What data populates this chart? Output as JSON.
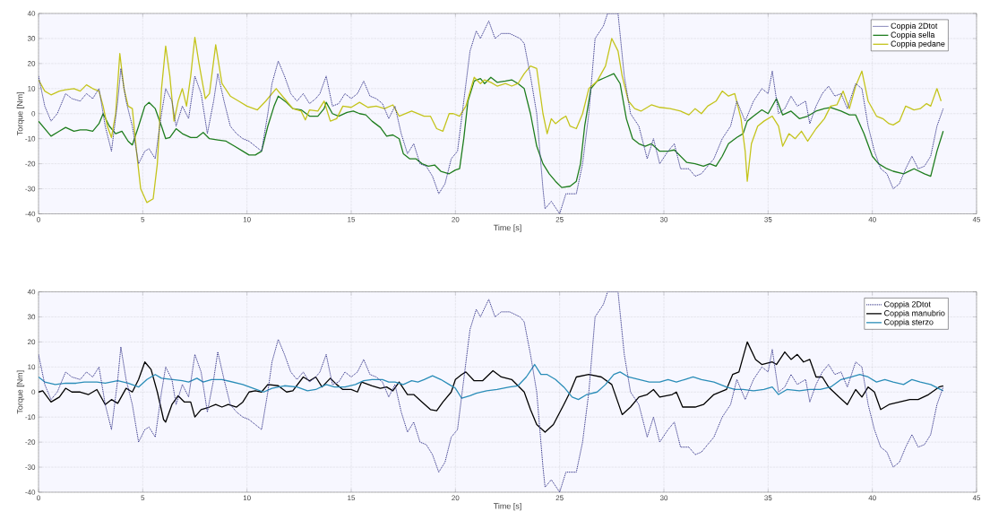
{
  "chart_data": [
    {
      "type": "line",
      "xlabel": "Time [s]",
      "ylabel": "Torque [Nm]",
      "xlim": [
        0,
        45
      ],
      "ylim": [
        -40,
        40
      ],
      "xticks": [
        0,
        5,
        10,
        15,
        20,
        25,
        30,
        35,
        40,
        45
      ],
      "yticks": [
        -40,
        -30,
        -20,
        -10,
        0,
        10,
        20,
        30,
        40
      ],
      "grid": true,
      "legend": "top right",
      "marker": "none",
      "series": [
        {
          "name": "Coppia 2Dtot",
          "color": "#3a3a8c",
          "line_style": "dotted",
          "x": [
            0,
            0.3,
            0.6,
            0.9,
            1.3,
            1.6,
            2.0,
            2.3,
            2.6,
            2.9,
            3.2,
            3.5,
            3.8,
            3.95,
            4.2,
            4.5,
            4.8,
            5.1,
            5.3,
            5.6,
            5.9,
            6.1,
            6.4,
            6.6,
            6.9,
            7.2,
            7.5,
            7.8,
            8.1,
            8.4,
            8.6,
            8.9,
            9.2,
            9.5,
            9.8,
            10.1,
            10.4,
            10.7,
            11.0,
            11.2,
            11.5,
            11.8,
            12.1,
            12.4,
            12.7,
            13.0,
            13.3,
            13.5,
            13.8,
            14.1,
            14.4,
            14.7,
            15.0,
            15.3,
            15.6,
            15.9,
            16.2,
            16.5,
            16.8,
            17.1,
            17.4,
            17.7,
            18.0,
            18.3,
            18.6,
            18.9,
            19.2,
            19.5,
            19.8,
            20.1,
            20.4,
            20.7,
            21.0,
            21.2,
            21.6,
            21.9,
            22.2,
            22.6,
            23.1,
            23.3,
            23.6,
            23.9,
            24.2,
            24.3,
            24.6,
            25.0,
            25.3,
            25.8,
            26.1,
            26.4,
            26.7,
            27.1,
            27.3,
            27.8,
            28.1,
            28.4,
            28.8,
            29.2,
            29.5,
            29.8,
            30.2,
            30.5,
            30.8,
            31.2,
            31.5,
            31.8,
            32.4,
            32.8,
            33.2,
            33.5,
            33.9,
            34.3,
            34.7,
            35.0,
            35.2,
            35.5,
            35.8,
            36.1,
            36.4,
            36.8,
            37.0,
            37.3,
            37.6,
            37.9,
            38.2,
            38.5,
            38.8,
            39.2,
            39.5,
            39.8,
            40.1,
            40.4,
            40.7,
            41.0,
            41.3,
            41.6,
            41.9,
            42.2,
            42.5,
            42.8,
            43.1,
            43.4
          ],
          "values": [
            15,
            3,
            -3,
            0,
            8,
            6,
            5,
            8,
            6,
            10,
            -5,
            -15,
            5,
            18,
            5,
            -5,
            -20,
            -15,
            -14,
            -18,
            0,
            10,
            5,
            -5,
            3,
            -2,
            15,
            8,
            -8,
            5,
            16,
            5,
            -5,
            -8,
            -10,
            -11,
            -13,
            -15,
            0,
            12,
            21,
            15,
            8,
            5,
            8,
            4,
            6,
            8,
            15,
            3,
            4,
            8,
            6,
            8,
            13,
            7,
            6,
            4,
            -2,
            3,
            -8,
            -16,
            -12,
            -20,
            -21,
            -25,
            -32,
            -28,
            -18,
            -15,
            5,
            25,
            33,
            30,
            37,
            30,
            32,
            32,
            30,
            28,
            15,
            0,
            -30,
            -38,
            -35,
            -40,
            -32,
            -32,
            -20,
            0,
            30,
            35,
            40,
            40,
            15,
            0,
            -5,
            -18,
            -10,
            -20,
            -15,
            -12,
            -22,
            -22,
            -25,
            -24,
            -18,
            -10,
            -5,
            5,
            -3,
            5,
            10,
            8,
            17,
            0,
            2,
            7,
            3,
            5,
            -4,
            3,
            8,
            11,
            7,
            8,
            2,
            12,
            10,
            -5,
            -15,
            -22,
            -24,
            -30,
            -28,
            -22,
            -17,
            -22,
            -21,
            -17,
            -5,
            2
          ]
        },
        {
          "name": "Coppia sella",
          "color": "#1e7d1e",
          "line_style": "solid",
          "x": [
            0,
            0.6,
            1.0,
            1.3,
            1.7,
            2.0,
            2.3,
            2.6,
            2.9,
            3.1,
            3.4,
            3.7,
            4.0,
            4.3,
            4.5,
            4.8,
            5.1,
            5.3,
            5.6,
            5.9,
            6.1,
            6.3,
            6.6,
            6.9,
            7.3,
            7.6,
            7.9,
            8.2,
            8.6,
            9.0,
            9.4,
            9.8,
            10.1,
            10.4,
            10.7,
            11.0,
            11.3,
            11.5,
            11.9,
            12.2,
            12.6,
            13.0,
            13.4,
            13.7,
            13.8,
            14.1,
            14.4,
            14.8,
            15.1,
            15.4,
            15.7,
            16.0,
            16.4,
            16.7,
            17.0,
            17.3,
            17.5,
            17.8,
            18.1,
            18.4,
            18.7,
            19.0,
            19.3,
            19.7,
            20.0,
            20.2,
            20.4,
            20.6,
            20.9,
            21.2,
            21.4,
            21.7,
            22.0,
            22.4,
            22.7,
            23.0,
            23.3,
            23.6,
            23.9,
            24.2,
            24.5,
            24.8,
            25.1,
            25.5,
            25.8,
            26.0,
            26.2,
            26.5,
            26.8,
            27.2,
            27.6,
            27.9,
            28.2,
            28.5,
            28.8,
            29.1,
            29.4,
            29.8,
            30.2,
            30.5,
            30.8,
            31.1,
            31.5,
            31.9,
            32.2,
            32.5,
            32.8,
            33.1,
            33.5,
            33.8,
            34.0,
            34.3,
            34.7,
            35.0,
            35.4,
            35.7,
            36.1,
            36.5,
            36.9,
            37.3,
            37.7,
            38.0,
            38.5,
            38.9,
            39.2,
            39.6,
            40.0,
            40.3,
            40.7,
            41.0,
            41.5,
            42.0,
            42.5,
            42.8,
            43.1,
            43.4
          ],
          "values": [
            -3,
            -9,
            -7,
            -5.5,
            -7,
            -6.5,
            -6.5,
            -7,
            -4,
            0,
            -5,
            -8,
            -7,
            -11,
            -12.5,
            -5,
            3,
            4.5,
            2,
            -5,
            -10,
            -9.5,
            -6,
            -8,
            -9.5,
            -9.5,
            -7.5,
            -10,
            -10.5,
            -11,
            -13,
            -15,
            -16.5,
            -16.5,
            -15,
            -5,
            3,
            7,
            4.5,
            2,
            1.5,
            -1,
            -1,
            2,
            4.5,
            0,
            -1,
            0.5,
            1,
            0,
            -0.5,
            -3,
            -5.5,
            -9,
            -8.5,
            -10,
            -16,
            -18,
            -18,
            -20,
            -21,
            -20.5,
            -23,
            -24,
            -22.5,
            -22,
            -10,
            5,
            13,
            14,
            12,
            14.5,
            12.5,
            13,
            13.5,
            12,
            10,
            0,
            -13,
            -20,
            -24,
            -27,
            -29.5,
            -29,
            -27,
            -20,
            -5,
            10,
            13,
            14.5,
            16,
            12,
            -2,
            -10,
            -12,
            -13,
            -12,
            -15,
            -15,
            -14.5,
            -17,
            -19.5,
            -20,
            -21,
            -20,
            -21,
            -17,
            -12,
            -9.5,
            -8,
            -3,
            -1,
            1.5,
            0,
            6,
            -0.5,
            1,
            -2,
            -1,
            1,
            2,
            2.5,
            1,
            -0.5,
            -0.5,
            -8,
            -17,
            -20,
            -22,
            -23,
            -24,
            -22,
            -24,
            -25,
            -15,
            -7
          ]
        },
        {
          "name": "Coppia pedane",
          "color": "#c4c41c",
          "line_style": "solid",
          "x": [
            0,
            0.3,
            0.6,
            1.0,
            1.3,
            1.7,
            2.0,
            2.3,
            2.6,
            2.9,
            3.1,
            3.3,
            3.5,
            3.7,
            3.9,
            4.1,
            4.3,
            4.5,
            4.7,
            4.9,
            5.2,
            5.5,
            5.7,
            5.9,
            6.1,
            6.3,
            6.5,
            6.7,
            6.9,
            7.1,
            7.3,
            7.5,
            7.7,
            8.0,
            8.2,
            8.5,
            8.8,
            9.2,
            9.6,
            10.0,
            10.5,
            10.9,
            11.4,
            11.8,
            12.2,
            12.6,
            12.8,
            13.0,
            13.4,
            13.7,
            14.0,
            14.3,
            14.6,
            15.0,
            15.4,
            15.8,
            16.2,
            16.6,
            17.0,
            17.3,
            17.9,
            18.5,
            18.8,
            19.1,
            19.4,
            19.7,
            19.9,
            20.2,
            20.5,
            20.9,
            21.2,
            21.4,
            21.7,
            22.0,
            22.4,
            22.7,
            23.0,
            23.3,
            23.6,
            23.9,
            24.2,
            24.4,
            24.6,
            24.8,
            25.1,
            25.3,
            25.5,
            25.8,
            26.1,
            26.4,
            26.8,
            27.2,
            27.5,
            27.8,
            28.0,
            28.3,
            28.6,
            28.9,
            29.4,
            29.8,
            30.3,
            30.8,
            31.2,
            31.5,
            31.8,
            32.1,
            32.5,
            32.8,
            33.1,
            33.4,
            33.7,
            33.9,
            34.0,
            34.2,
            34.5,
            34.8,
            35.2,
            35.5,
            35.7,
            36.0,
            36.3,
            36.6,
            36.9,
            37.3,
            37.7,
            38.0,
            38.3,
            38.6,
            38.9,
            39.2,
            39.5,
            39.8,
            40.2,
            40.5,
            40.8,
            41.0,
            41.3,
            41.6,
            42.0,
            42.3,
            42.6,
            42.8,
            43.1,
            43.3
          ],
          "values": [
            13.5,
            9,
            7.5,
            9,
            9.5,
            10,
            9,
            11.5,
            10,
            9,
            3,
            -5,
            -9.5,
            0,
            24,
            10,
            3,
            2,
            -15,
            -30,
            -35.5,
            -34,
            -20,
            10,
            27,
            15,
            -3,
            5,
            10,
            3,
            15,
            30.5,
            20,
            6,
            8,
            27.5,
            12,
            7,
            5,
            3,
            1.5,
            5,
            10,
            6,
            2,
            1,
            -2.5,
            1.5,
            1,
            5,
            -3,
            -2,
            3,
            2.5,
            4.5,
            2.5,
            3,
            2,
            3.5,
            -1,
            1,
            -1,
            -1,
            -6,
            -7,
            0,
            0,
            -1,
            3,
            14.5,
            12,
            13.5,
            12.5,
            11,
            12,
            11,
            12,
            16,
            19,
            18,
            0,
            -8,
            -2,
            -4,
            -2,
            -1,
            -5,
            -6,
            0,
            10,
            13,
            19,
            30,
            25,
            15,
            5,
            2,
            1,
            3.5,
            2.5,
            2,
            1,
            -0.5,
            2,
            0,
            3,
            5,
            9,
            7,
            8,
            -2,
            -15,
            -27,
            -12,
            -5,
            -3,
            -1,
            -5,
            -13,
            -8,
            -10,
            -7,
            -11,
            -6,
            -2,
            3,
            3.5,
            9,
            2,
            11,
            17,
            5,
            -1,
            -2,
            -4,
            -4.5,
            -3,
            3,
            1.5,
            2,
            4,
            3,
            10,
            5
          ]
        }
      ]
    },
    {
      "type": "line",
      "xlabel": "Time [s]",
      "ylabel": "Torque [Nm]",
      "xlim": [
        0,
        45
      ],
      "ylim": [
        -40,
        40
      ],
      "xticks": [
        0,
        5,
        10,
        15,
        20,
        25,
        30,
        35,
        40,
        45
      ],
      "yticks": [
        -40,
        -30,
        -20,
        -10,
        0,
        10,
        20,
        30,
        40
      ],
      "grid": true,
      "legend": "top right",
      "marker": "none",
      "series": [
        {
          "name": "Coppia 2Dtot",
          "color": "#3a3a8c",
          "line_style": "dotted",
          "x": [
            0,
            0.3,
            0.6,
            0.9,
            1.3,
            1.6,
            2.0,
            2.3,
            2.6,
            2.9,
            3.2,
            3.5,
            3.8,
            3.95,
            4.2,
            4.5,
            4.8,
            5.1,
            5.3,
            5.6,
            5.9,
            6.1,
            6.4,
            6.6,
            6.9,
            7.2,
            7.5,
            7.8,
            8.1,
            8.4,
            8.6,
            8.9,
            9.2,
            9.5,
            9.8,
            10.1,
            10.4,
            10.7,
            11.0,
            11.2,
            11.5,
            11.8,
            12.1,
            12.4,
            12.7,
            13.0,
            13.3,
            13.5,
            13.8,
            14.1,
            14.4,
            14.7,
            15.0,
            15.3,
            15.6,
            15.9,
            16.2,
            16.5,
            16.8,
            17.1,
            17.4,
            17.7,
            18.0,
            18.3,
            18.6,
            18.9,
            19.2,
            19.5,
            19.8,
            20.1,
            20.4,
            20.7,
            21.0,
            21.2,
            21.6,
            21.9,
            22.2,
            22.6,
            23.1,
            23.3,
            23.6,
            23.9,
            24.2,
            24.3,
            24.6,
            25.0,
            25.3,
            25.8,
            26.1,
            26.4,
            26.7,
            27.1,
            27.3,
            27.8,
            28.1,
            28.4,
            28.8,
            29.2,
            29.5,
            29.8,
            30.2,
            30.5,
            30.8,
            31.2,
            31.5,
            31.8,
            32.4,
            32.8,
            33.2,
            33.5,
            33.9,
            34.3,
            34.7,
            35.0,
            35.2,
            35.5,
            35.8,
            36.1,
            36.4,
            36.8,
            37.0,
            37.3,
            37.6,
            37.9,
            38.2,
            38.5,
            38.8,
            39.2,
            39.5,
            39.8,
            40.1,
            40.4,
            40.7,
            41.0,
            41.3,
            41.6,
            41.9,
            42.2,
            42.5,
            42.8,
            43.1,
            43.4
          ],
          "values": [
            15,
            3,
            -3,
            0,
            8,
            6,
            5,
            8,
            6,
            10,
            -5,
            -15,
            5,
            18,
            5,
            -5,
            -20,
            -15,
            -14,
            -18,
            0,
            10,
            5,
            -5,
            3,
            -2,
            15,
            8,
            -8,
            5,
            16,
            5,
            -5,
            -8,
            -10,
            -11,
            -13,
            -15,
            0,
            12,
            21,
            15,
            8,
            5,
            8,
            4,
            6,
            8,
            15,
            3,
            4,
            8,
            6,
            8,
            13,
            7,
            6,
            4,
            -2,
            3,
            -8,
            -16,
            -12,
            -20,
            -21,
            -25,
            -32,
            -28,
            -18,
            -15,
            5,
            25,
            33,
            30,
            37,
            30,
            32,
            32,
            30,
            28,
            15,
            0,
            -30,
            -38,
            -35,
            -40,
            -32,
            -32,
            -20,
            0,
            30,
            35,
            40,
            40,
            15,
            0,
            -5,
            -18,
            -10,
            -20,
            -15,
            -12,
            -22,
            -22,
            -25,
            -24,
            -18,
            -10,
            -5,
            5,
            -3,
            5,
            10,
            8,
            17,
            0,
            2,
            7,
            3,
            5,
            -4,
            3,
            8,
            11,
            7,
            8,
            2,
            12,
            10,
            -5,
            -15,
            -22,
            -24,
            -30,
            -28,
            -22,
            -17,
            -22,
            -21,
            -17,
            -5,
            2
          ]
        },
        {
          "name": "Coppia manubrio",
          "color": "#000000",
          "line_style": "solid",
          "x": [
            0,
            0.2,
            0.6,
            1.0,
            1.3,
            1.6,
            2.0,
            2.4,
            2.8,
            3.2,
            3.5,
            3.8,
            4.2,
            4.5,
            4.8,
            5.1,
            5.4,
            5.7,
            6.0,
            6.1,
            6.4,
            6.7,
            7.0,
            7.3,
            7.5,
            7.8,
            8.2,
            8.5,
            8.8,
            9.1,
            9.5,
            9.8,
            10.1,
            10.4,
            10.7,
            11.0,
            11.5,
            11.9,
            12.2,
            12.7,
            13.0,
            13.3,
            13.6,
            14.0,
            14.3,
            14.6,
            15.0,
            15.3,
            15.5,
            16.0,
            16.4,
            16.7,
            17.0,
            17.3,
            17.7,
            18.0,
            18.4,
            18.8,
            19.1,
            19.4,
            19.8,
            20.0,
            20.3,
            20.5,
            20.9,
            21.3,
            21.8,
            22.2,
            22.7,
            23.3,
            23.6,
            23.9,
            24.3,
            24.7,
            25.2,
            25.5,
            25.8,
            26.4,
            27.0,
            27.5,
            28.0,
            28.4,
            28.8,
            29.2,
            29.5,
            29.8,
            30.4,
            30.6,
            30.9,
            31.5,
            31.9,
            32.4,
            33.0,
            33.3,
            33.6,
            34.0,
            34.4,
            34.7,
            35.2,
            35.4,
            35.8,
            36.1,
            36.4,
            36.7,
            37.0,
            37.3,
            37.6,
            37.9,
            38.4,
            38.8,
            39.2,
            39.5,
            39.8,
            40.1,
            40.4,
            40.8,
            41.3,
            41.8,
            42.2,
            42.7,
            43.2,
            43.4
          ],
          "values": [
            0,
            0.5,
            -4,
            -2,
            1.5,
            0,
            0,
            -1,
            1,
            -5,
            -3,
            -4.5,
            1.5,
            0,
            5,
            12,
            9,
            0,
            -11,
            -12,
            -5,
            -1.5,
            -4,
            -4,
            -10,
            -7,
            -6,
            -5,
            -6,
            -5,
            -6,
            -4,
            0,
            0.5,
            0,
            3,
            2.5,
            0,
            0.5,
            6,
            4.5,
            6,
            2,
            5.5,
            3,
            1,
            1,
            0,
            4,
            2.5,
            1.5,
            2,
            0.5,
            4,
            -1,
            -1,
            -4,
            -7,
            -7.5,
            -4,
            0,
            5,
            7,
            8,
            4.5,
            4.5,
            8.5,
            6,
            5,
            0,
            -7,
            -13,
            -16,
            -13,
            -5,
            0,
            6,
            7,
            6,
            3,
            -9,
            -6,
            -2,
            -1,
            1,
            -2,
            -1,
            0,
            -6,
            -6,
            -5,
            -1,
            1,
            7,
            8,
            20,
            13,
            11,
            12,
            11,
            16,
            13,
            15,
            12,
            13,
            6,
            6,
            2,
            -2,
            -5,
            1,
            -2,
            2,
            0,
            -7,
            -5,
            -4,
            -3,
            -3,
            -1,
            2,
            2.5
          ]
        },
        {
          "name": "Coppia sterzo",
          "color": "#2a8db8",
          "line_style": "solid",
          "x": [
            0,
            0.3,
            0.8,
            1.3,
            1.8,
            2.2,
            2.8,
            3.2,
            3.8,
            4.3,
            4.8,
            5.2,
            5.6,
            5.9,
            6.4,
            6.9,
            7.2,
            7.6,
            7.9,
            8.3,
            8.8,
            9.3,
            9.8,
            10.3,
            10.8,
            11.2,
            11.8,
            12.4,
            12.9,
            13.3,
            13.8,
            14.2,
            14.7,
            15.2,
            15.6,
            16.0,
            16.5,
            16.8,
            17.1,
            17.5,
            17.9,
            18.2,
            18.5,
            18.9,
            19.3,
            19.7,
            20.0,
            20.3,
            20.7,
            21.0,
            21.5,
            22.0,
            22.6,
            23.0,
            23.4,
            23.8,
            24.1,
            24.4,
            24.8,
            25.2,
            25.6,
            25.9,
            26.3,
            26.8,
            27.2,
            27.6,
            27.9,
            28.3,
            28.8,
            29.3,
            29.8,
            30.2,
            30.6,
            31.0,
            31.4,
            31.8,
            32.4,
            33.0,
            33.4,
            33.8,
            34.3,
            34.8,
            35.2,
            35.5,
            35.9,
            36.5,
            37.0,
            37.5,
            38.0,
            38.5,
            39.0,
            39.4,
            39.8,
            40.2,
            40.6,
            41.0,
            41.5,
            41.9,
            42.3,
            42.8,
            43.4
          ],
          "values": [
            6,
            4,
            3,
            3.5,
            3.5,
            4,
            4,
            3.5,
            4.5,
            3.5,
            2,
            5,
            7,
            5.5,
            5,
            4.5,
            4,
            5.5,
            4,
            5,
            5,
            4,
            3,
            1.5,
            0,
            1.5,
            2.5,
            2,
            0.5,
            1,
            3,
            2,
            2,
            3,
            4.5,
            5,
            5,
            4,
            4,
            3,
            4.5,
            4,
            5,
            6.5,
            5,
            3,
            1.5,
            -2.5,
            -1.5,
            -0.5,
            0.5,
            1,
            2,
            2.5,
            6,
            11,
            7,
            7,
            5,
            2,
            -2,
            -3,
            -1,
            0,
            3,
            7,
            8,
            6,
            5,
            4,
            4,
            5,
            4,
            5,
            6,
            5,
            4,
            2,
            1,
            1,
            0.5,
            1,
            2,
            -1,
            1,
            0.5,
            1,
            1,
            2,
            5,
            6,
            7,
            6,
            4,
            5,
            4,
            3,
            5,
            4,
            3,
            0.5
          ]
        }
      ]
    }
  ]
}
